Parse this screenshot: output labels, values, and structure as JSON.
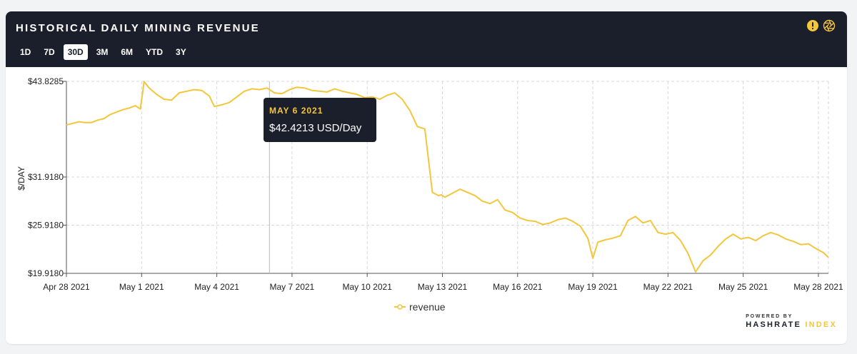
{
  "header": {
    "title": "HISTORICAL DAILY MINING REVENUE",
    "tabs": [
      {
        "label": "1D",
        "active": false
      },
      {
        "label": "7D",
        "active": false
      },
      {
        "label": "30D",
        "active": true
      },
      {
        "label": "3M",
        "active": false
      },
      {
        "label": "6M",
        "active": false
      },
      {
        "label": "YTD",
        "active": false
      },
      {
        "label": "3Y",
        "active": false
      }
    ],
    "icons": [
      "alert-icon",
      "aperture-icon"
    ]
  },
  "tooltip": {
    "date": "MAY 6 2021",
    "value": "$42.4213 USD/Day"
  },
  "legend": {
    "label": "revenue"
  },
  "brand": {
    "powered_by": "POWERED BY",
    "name": "HASHRATE",
    "accent": "INDEX"
  },
  "colors": {
    "line": "#f3c63b",
    "header_bg": "#1b1f2b",
    "grid": "#d8d8d8"
  },
  "chart_data": {
    "type": "line",
    "title": "HISTORICAL DAILY MINING REVENUE",
    "ylabel": "$/DAY",
    "xlabel": "",
    "ylim": [
      19.918,
      43.8285
    ],
    "yticks": [
      19.918,
      25.918,
      31.918,
      43.8285
    ],
    "ytick_labels": [
      "$19.9180",
      "$25.9180",
      "$31.9180",
      "$43.8285"
    ],
    "xtick_labels": [
      "Apr 28 2021",
      "May 1 2021",
      "May 4 2021",
      "May 7 2021",
      "May 10 2021",
      "May 13 2021",
      "May 16 2021",
      "May 19 2021",
      "May 22 2021",
      "May 25 2021",
      "May 28 2021"
    ],
    "xtick_days": [
      0,
      3,
      6,
      9,
      12,
      15,
      18,
      21,
      24,
      27,
      30
    ],
    "grid": true,
    "legend_position": "bottom-center",
    "highlight": {
      "day": 8.1,
      "value": 42.4213,
      "label": "MAY 6 2021"
    },
    "series": [
      {
        "name": "revenue",
        "x": [
          0,
          0.25,
          0.5,
          0.75,
          1,
          1.25,
          1.5,
          1.75,
          2,
          2.25,
          2.5,
          2.75,
          2.95,
          3.1,
          3.3,
          3.6,
          3.9,
          4.2,
          4.5,
          4.8,
          5.1,
          5.4,
          5.7,
          5.9,
          6.2,
          6.5,
          6.8,
          7.1,
          7.4,
          7.7,
          8.0,
          8.3,
          8.6,
          8.9,
          9.2,
          9.5,
          9.8,
          10.1,
          10.4,
          10.7,
          11.0,
          11.3,
          11.6,
          11.9,
          12.2,
          12.5,
          12.8,
          13.1,
          13.4,
          13.7,
          14.0,
          14.3,
          14.6,
          14.85,
          14.95,
          15.1,
          15.4,
          15.7,
          16.0,
          16.3,
          16.6,
          16.9,
          17.2,
          17.5,
          17.8,
          18.1,
          18.4,
          18.7,
          19.0,
          19.3,
          19.6,
          19.9,
          20.2,
          20.5,
          20.8,
          21.0,
          21.2,
          21.5,
          21.8,
          22.1,
          22.4,
          22.7,
          23.0,
          23.3,
          23.6,
          23.9,
          24.2,
          24.5,
          24.8,
          25.1,
          25.4,
          25.7,
          26.0,
          26.3,
          26.6,
          26.9,
          27.2,
          27.5,
          27.8,
          28.1,
          28.4,
          28.7,
          29.0,
          29.3,
          29.6,
          29.9,
          30.2,
          30.4
        ],
        "values": [
          38.4,
          38.6,
          38.8,
          38.7,
          38.7,
          39.0,
          39.2,
          39.7,
          40.0,
          40.3,
          40.5,
          40.8,
          40.4,
          43.8,
          43.0,
          42.2,
          41.6,
          41.5,
          42.4,
          42.6,
          42.8,
          42.7,
          42.0,
          40.7,
          40.9,
          41.2,
          41.9,
          42.6,
          42.9,
          42.8,
          43.0,
          42.4,
          42.3,
          42.8,
          43.1,
          43.0,
          42.7,
          42.6,
          42.5,
          42.9,
          42.6,
          42.4,
          42.2,
          41.8,
          41.9,
          41.6,
          42.1,
          42.4,
          41.6,
          40.2,
          38.2,
          37.9,
          30.0,
          29.6,
          29.7,
          29.4,
          29.9,
          30.4,
          30.0,
          29.6,
          28.9,
          28.6,
          29.1,
          27.8,
          27.5,
          26.8,
          26.5,
          26.4,
          26.0,
          26.2,
          26.6,
          26.8,
          26.4,
          25.8,
          24.3,
          21.8,
          23.8,
          24.1,
          24.3,
          24.6,
          26.5,
          27.0,
          26.2,
          26.5,
          25.0,
          24.8,
          25.0,
          24.0,
          22.4,
          20.1,
          21.5,
          22.2,
          23.3,
          24.2,
          24.8,
          24.2,
          24.4,
          24.0,
          24.6,
          25.0,
          24.7,
          24.2,
          23.9,
          23.5,
          23.6,
          23.0,
          22.5,
          21.9
        ]
      }
    ]
  }
}
